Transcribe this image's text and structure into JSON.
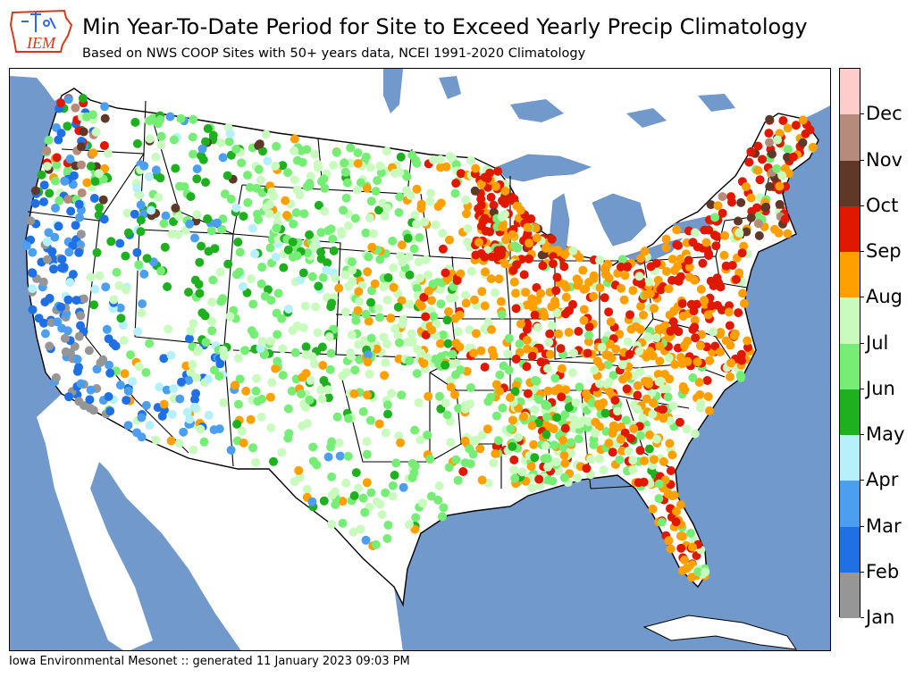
{
  "header": {
    "logo_text": "IEM",
    "title": "Min Year-To-Date Period for Site to Exceed Yearly Precip Climatology",
    "subtitle": "Based on NWS COOP Sites with 50+ years data, NCEI 1991-2020 Climatology"
  },
  "footer": {
    "credit": "Iowa Environmental Mesonet :: generated 11 January 2023 09:03 PM"
  },
  "colors": {
    "water": "#7299cc",
    "land": "#ffffff",
    "border": "#000000"
  },
  "legend": {
    "labels": [
      "Jan",
      "Feb",
      "Mar",
      "Apr",
      "May",
      "Jun",
      "Jul",
      "Aug",
      "Sep",
      "Oct",
      "Nov",
      "Dec"
    ],
    "colors": [
      "#969696",
      "#1f6fe5",
      "#4c9ff0",
      "#b6f0fa",
      "#1eb01e",
      "#76ee76",
      "#c9fbbe",
      "#ff9f00",
      "#e01800",
      "#603828",
      "#b68b7b",
      "#ffcccc"
    ]
  },
  "map": {
    "regions": [
      {
        "name": "pacific-nw",
        "colors": [
          "#603828",
          "#76ee76",
          "#1f6fe5",
          "#4c9ff0",
          "#b68b7b",
          "#1eb01e",
          "#c9fbbe",
          "#e01800",
          "#ff9f00"
        ],
        "weights": [
          3,
          3,
          2,
          2,
          1,
          2,
          1,
          1,
          1
        ]
      },
      {
        "name": "california",
        "colors": [
          "#1f6fe5",
          "#4c9ff0",
          "#969696",
          "#b6f0fa"
        ],
        "weights": [
          4,
          3,
          2,
          1
        ]
      },
      {
        "name": "southern-california",
        "colors": [
          "#969696",
          "#1f6fe5",
          "#4c9ff0"
        ],
        "weights": [
          5,
          2,
          1
        ]
      },
      {
        "name": "great-basin",
        "colors": [
          "#1eb01e",
          "#1f6fe5",
          "#4c9ff0",
          "#b6f0fa",
          "#76ee76",
          "#c9fbbe"
        ],
        "weights": [
          2,
          2,
          1,
          1,
          1,
          1
        ]
      },
      {
        "name": "southwest",
        "colors": [
          "#1f6fe5",
          "#4c9ff0",
          "#b6f0fa",
          "#c9fbbe",
          "#ff9f00",
          "#76ee76"
        ],
        "weights": [
          3,
          2,
          2,
          2,
          1,
          1
        ]
      },
      {
        "name": "northern-rockies",
        "colors": [
          "#76ee76",
          "#1eb01e",
          "#c9fbbe",
          "#b6f0fa",
          "#4c9ff0",
          "#603828"
        ],
        "weights": [
          4,
          3,
          2,
          1,
          1,
          1
        ]
      },
      {
        "name": "central-rockies",
        "colors": [
          "#76ee76",
          "#1eb01e",
          "#c9fbbe",
          "#b6f0fa"
        ],
        "weights": [
          3,
          3,
          2,
          1
        ]
      },
      {
        "name": "northern-plains",
        "colors": [
          "#c9fbbe",
          "#76ee76",
          "#1eb01e",
          "#ff9f00"
        ],
        "weights": [
          4,
          3,
          1,
          1
        ]
      },
      {
        "name": "central-plains",
        "colors": [
          "#c9fbbe",
          "#76ee76",
          "#ff9f00",
          "#1eb01e"
        ],
        "weights": [
          5,
          2,
          2,
          1
        ]
      },
      {
        "name": "southern-plains",
        "colors": [
          "#76ee76",
          "#c9fbbe",
          "#ff9f00",
          "#1eb01e",
          "#4c9ff0"
        ],
        "weights": [
          4,
          4,
          2,
          1,
          1
        ]
      },
      {
        "name": "minnesota-iowa",
        "colors": [
          "#ff9f00",
          "#c9fbbe",
          "#76ee76",
          "#e01800"
        ],
        "weights": [
          4,
          3,
          1,
          1
        ]
      },
      {
        "name": "wisconsin-michigan",
        "colors": [
          "#e01800",
          "#ff9f00",
          "#c9fbbe",
          "#603828",
          "#76ee76"
        ],
        "weights": [
          4,
          4,
          1,
          1,
          1
        ]
      },
      {
        "name": "ohio-valley",
        "colors": [
          "#ff9f00",
          "#e01800",
          "#c9fbbe",
          "#76ee76"
        ],
        "weights": [
          4,
          3,
          1,
          1
        ]
      },
      {
        "name": "mid-south",
        "colors": [
          "#ff9f00",
          "#c9fbbe",
          "#76ee76",
          "#e01800"
        ],
        "weights": [
          3,
          3,
          2,
          1
        ]
      },
      {
        "name": "deep-south",
        "colors": [
          "#c9fbbe",
          "#76ee76",
          "#ff9f00",
          "#e01800",
          "#1eb01e"
        ],
        "weights": [
          3,
          3,
          2,
          1,
          1
        ]
      },
      {
        "name": "southeast-coast",
        "colors": [
          "#ff9f00",
          "#c9fbbe",
          "#e01800",
          "#76ee76"
        ],
        "weights": [
          4,
          3,
          2,
          1
        ]
      },
      {
        "name": "mid-atlantic",
        "colors": [
          "#e01800",
          "#ff9f00",
          "#c9fbbe"
        ],
        "weights": [
          4,
          4,
          1
        ]
      },
      {
        "name": "northeast",
        "colors": [
          "#e01800",
          "#ff9f00",
          "#603828",
          "#b68b7b",
          "#c9fbbe",
          "#76ee76"
        ],
        "weights": [
          4,
          3,
          2,
          1,
          1,
          1
        ]
      },
      {
        "name": "florida",
        "colors": [
          "#ff9f00",
          "#e01800",
          "#c9fbbe",
          "#76ee76"
        ],
        "weights": [
          4,
          3,
          1,
          1
        ]
      }
    ]
  }
}
